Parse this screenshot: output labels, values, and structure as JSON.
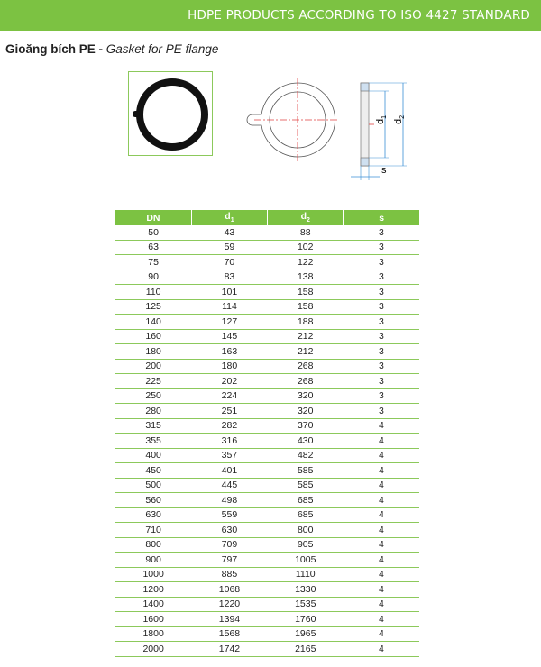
{
  "header": {
    "banner": "HDPE PRODUCTS ACCORDING TO ISO 4427 STANDARD"
  },
  "title": {
    "vi": "Gioăng bích PE -",
    "en": "Gasket for PE flange"
  },
  "diagram": {
    "d1_label": "d",
    "d1_sub": "1",
    "d2_label": "d",
    "d2_sub": "2",
    "s_label": "s"
  },
  "colors": {
    "accent": "#7cc242",
    "centerline": "#e04040",
    "dimension": "#3a8fd6"
  },
  "table": {
    "headers": [
      {
        "label": "DN",
        "sub": ""
      },
      {
        "label": "d",
        "sub": "1"
      },
      {
        "label": "d",
        "sub": "2"
      },
      {
        "label": "s",
        "sub": ""
      }
    ],
    "rows": [
      [
        "50",
        "43",
        "88",
        "3"
      ],
      [
        "63",
        "59",
        "102",
        "3"
      ],
      [
        "75",
        "70",
        "122",
        "3"
      ],
      [
        "90",
        "83",
        "138",
        "3"
      ],
      [
        "110",
        "101",
        "158",
        "3"
      ],
      [
        "125",
        "114",
        "158",
        "3"
      ],
      [
        "140",
        "127",
        "188",
        "3"
      ],
      [
        "160",
        "145",
        "212",
        "3"
      ],
      [
        "180",
        "163",
        "212",
        "3"
      ],
      [
        "200",
        "180",
        "268",
        "3"
      ],
      [
        "225",
        "202",
        "268",
        "3"
      ],
      [
        "250",
        "224",
        "320",
        "3"
      ],
      [
        "280",
        "251",
        "320",
        "3"
      ],
      [
        "315",
        "282",
        "370",
        "4"
      ],
      [
        "355",
        "316",
        "430",
        "4"
      ],
      [
        "400",
        "357",
        "482",
        "4"
      ],
      [
        "450",
        "401",
        "585",
        "4"
      ],
      [
        "500",
        "445",
        "585",
        "4"
      ],
      [
        "560",
        "498",
        "685",
        "4"
      ],
      [
        "630",
        "559",
        "685",
        "4"
      ],
      [
        "710",
        "630",
        "800",
        "4"
      ],
      [
        "800",
        "709",
        "905",
        "4"
      ],
      [
        "900",
        "797",
        "1005",
        "4"
      ],
      [
        "1000",
        "885",
        "1110",
        "4"
      ],
      [
        "1200",
        "1068",
        "1330",
        "4"
      ],
      [
        "1400",
        "1220",
        "1535",
        "4"
      ],
      [
        "1600",
        "1394",
        "1760",
        "4"
      ],
      [
        "1800",
        "1568",
        "1965",
        "4"
      ],
      [
        "2000",
        "1742",
        "2165",
        "4"
      ]
    ]
  }
}
